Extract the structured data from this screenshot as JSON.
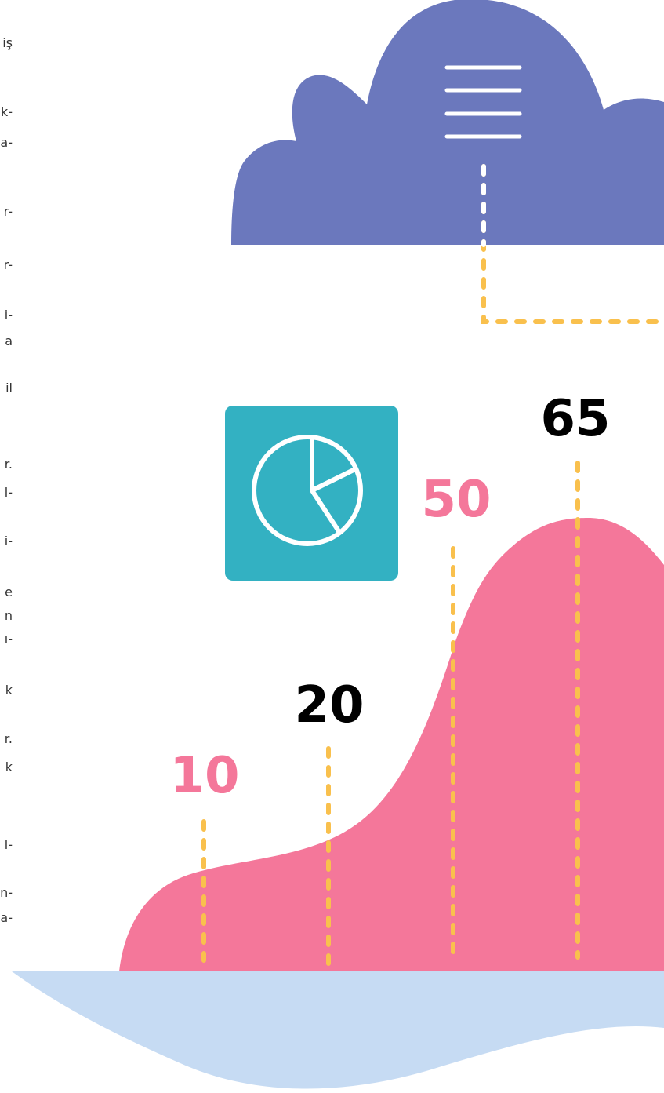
{
  "side_text": [
    "iş",
    "k-",
    "a-",
    "r-",
    "r-",
    "i-",
    "a",
    "il",
    "r.",
    "l-",
    "i-",
    "e",
    "n",
    "ı-",
    "k",
    "r.",
    "k",
    "l-",
    "n-",
    "a-"
  ],
  "peaks": [
    10,
    20,
    50,
    65
  ]
}
